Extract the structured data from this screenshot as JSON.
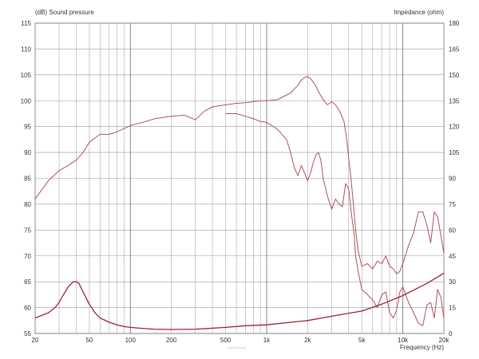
{
  "chart_data": {
    "type": "line",
    "title": "",
    "ylabel": "(dB)  Sound pressure",
    "y2label": "Impedance  (ohm)",
    "xlabel": "Frequency  (Hz)",
    "x_scale": "log",
    "xlim": [
      20,
      20000
    ],
    "ylim": [
      55,
      115
    ],
    "y2lim": [
      0,
      180
    ],
    "grid": true,
    "x_ticks": [
      {
        "v": 20,
        "label": "20"
      },
      {
        "v": 50,
        "label": "50"
      },
      {
        "v": 100,
        "label": "100"
      },
      {
        "v": 200,
        "label": "200"
      },
      {
        "v": 500,
        "label": "500"
      },
      {
        "v": 1000,
        "label": "1k"
      },
      {
        "v": 2000,
        "label": "2k"
      },
      {
        "v": 5000,
        "label": "5k"
      },
      {
        "v": 10000,
        "label": "10k"
      },
      {
        "v": 20000,
        "label": "20k"
      }
    ],
    "y_ticks": [
      115,
      110,
      105,
      100,
      95,
      90,
      85,
      80,
      75,
      70,
      65,
      60,
      55
    ],
    "y2_ticks": [
      180,
      165,
      150,
      135,
      120,
      105,
      90,
      75,
      60,
      45,
      30,
      15,
      0
    ],
    "series": [
      {
        "axis": "left",
        "color": "#b0505c",
        "x": [
          20,
          25,
          30,
          35,
          40,
          45,
          50,
          60,
          70,
          80,
          100,
          130,
          150,
          200,
          250,
          300,
          350,
          400,
          500,
          600,
          700,
          800,
          900,
          1000,
          1200,
          1500,
          1700,
          1800,
          1900,
          2000,
          2100,
          2200,
          2300,
          2400,
          2600,
          2800,
          3000,
          3200,
          3400,
          3500,
          3700,
          3900,
          4000,
          4200,
          4400,
          4500,
          4700,
          5000,
          5500,
          6000,
          6500,
          7000,
          7500,
          8000,
          8500,
          9000,
          9500,
          10000,
          11000,
          12000,
          13000,
          14000,
          15000,
          16000,
          17000,
          18000,
          19000,
          20000
        ],
        "y": [
          81,
          84.5,
          86.5,
          87.5,
          88.5,
          90,
          92,
          93.5,
          93.5,
          94,
          95.2,
          96,
          96.5,
          97,
          97.2,
          96.3,
          98,
          98.8,
          99.2,
          99.5,
          99.6,
          99.8,
          100,
          100,
          100.2,
          101.5,
          103,
          104,
          104.5,
          104.7,
          104.3,
          103.6,
          102.8,
          101.8,
          100.2,
          99.2,
          99.8,
          99.2,
          98.2,
          97.5,
          96,
          92,
          89,
          84,
          78,
          75,
          71,
          68,
          68.5,
          67.5,
          69,
          68.5,
          70,
          68,
          67.5,
          66.5,
          67,
          68.5,
          72,
          74.5,
          78.5,
          78.5,
          76,
          72.5,
          78.5,
          77.5,
          74,
          70.5
        ]
      },
      {
        "axis": "left",
        "color": "#b0505c",
        "x": [
          500,
          600,
          700,
          800,
          900,
          1000,
          1200,
          1400,
          1500,
          1600,
          1700,
          1800,
          1900,
          2000,
          2100,
          2200,
          2300,
          2400,
          2500,
          2600,
          2800,
          3000,
          3200,
          3400,
          3600,
          3800,
          4000,
          4200,
          4400,
          4500,
          4700,
          5000,
          5500,
          6000,
          6500,
          7000,
          7500,
          8000,
          8500,
          9000,
          9500,
          10000,
          11000,
          12000,
          13000,
          14000,
          15000,
          16000,
          17000,
          18000,
          19000,
          20000
        ],
        "y": [
          97.5,
          97.5,
          97,
          96.5,
          96,
          95.8,
          94.5,
          92.5,
          90,
          87,
          85.5,
          87.5,
          86,
          84.5,
          86,
          88,
          89.5,
          90,
          88.5,
          85,
          81.5,
          79,
          81,
          80,
          79.5,
          84,
          83,
          78,
          74,
          70,
          67,
          63.5,
          62.5,
          61.5,
          60,
          62.5,
          63,
          59,
          58,
          59.5,
          63,
          64,
          61,
          59,
          57,
          56.5,
          60.5,
          61,
          58,
          63.5,
          62,
          58
        ]
      },
      {
        "axis": "right",
        "color": "#a02030",
        "x": [
          20,
          25,
          28,
          30,
          32,
          35,
          38,
          40,
          42,
          45,
          50,
          55,
          60,
          70,
          80,
          90,
          100,
          120,
          150,
          200,
          300,
          500,
          700,
          1000,
          1500,
          2000,
          3000,
          5000,
          7000,
          10000,
          15000,
          20000
        ],
        "y": [
          9,
          12,
          15,
          18,
          22,
          27,
          30,
          30,
          29,
          24,
          17,
          12,
          9,
          6.5,
          5,
          4,
          3.5,
          3,
          2.5,
          2.3,
          2.5,
          3.5,
          4.5,
          5,
          6.5,
          7.5,
          10,
          13,
          17,
          22,
          29,
          35
        ]
      }
    ]
  },
  "watermark": "www.tonsil.pl"
}
